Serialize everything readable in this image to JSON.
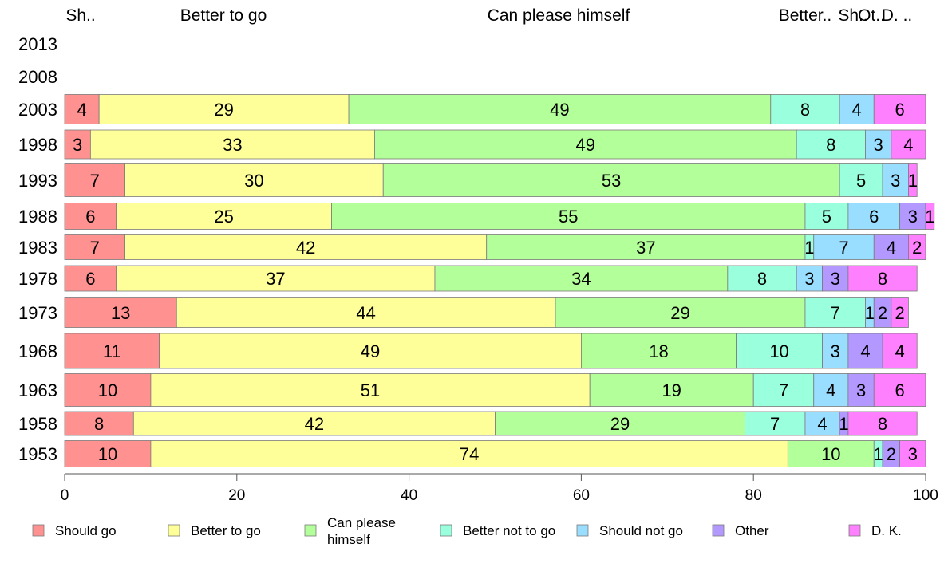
{
  "chart_data": {
    "type": "bar",
    "orientation": "horizontal",
    "stacked": true,
    "categories": [
      "1953",
      "1958",
      "1963",
      "1968",
      "1973",
      "1978",
      "1983",
      "1988",
      "1993",
      "1998",
      "2003",
      "2008",
      "2013"
    ],
    "series": [
      {
        "name": "Should go",
        "color": "#ff9191",
        "values": [
          10,
          8,
          10,
          11,
          13,
          6,
          7,
          6,
          7,
          3,
          4,
          null,
          null
        ]
      },
      {
        "name": "Better to go",
        "color": "#ffff99",
        "values": [
          74,
          42,
          51,
          49,
          44,
          37,
          42,
          25,
          30,
          33,
          29,
          null,
          null
        ]
      },
      {
        "name": "Can please himself",
        "color": "#b3ff99",
        "values": [
          10,
          29,
          19,
          18,
          29,
          34,
          37,
          55,
          53,
          49,
          49,
          null,
          null
        ]
      },
      {
        "name": "Better not to go",
        "color": "#99ffdd",
        "values": [
          1,
          7,
          7,
          10,
          7,
          8,
          1,
          5,
          5,
          8,
          8,
          null,
          null
        ]
      },
      {
        "name": "Should not go",
        "color": "#99ddff",
        "values": [
          0,
          4,
          4,
          3,
          1,
          3,
          7,
          6,
          3,
          3,
          4,
          null,
          null
        ]
      },
      {
        "name": "Other",
        "color": "#b399ff",
        "values": [
          2,
          1,
          3,
          4,
          2,
          3,
          4,
          3,
          0,
          0,
          0,
          null,
          null
        ]
      },
      {
        "name": "D. K.",
        "color": "#ff80ff",
        "values": [
          3,
          8,
          6,
          4,
          2,
          8,
          2,
          1,
          1,
          4,
          6,
          null,
          null
        ]
      }
    ],
    "top_labels": [
      "Sh..",
      "Better to go",
      "Can please himself",
      "Better..",
      "Sh..",
      "Ot..",
      "D. .."
    ],
    "xlim": [
      0,
      100
    ],
    "xticks": [
      0,
      20,
      40,
      60,
      80,
      100
    ],
    "legend_position": "bottom",
    "grid": false
  }
}
